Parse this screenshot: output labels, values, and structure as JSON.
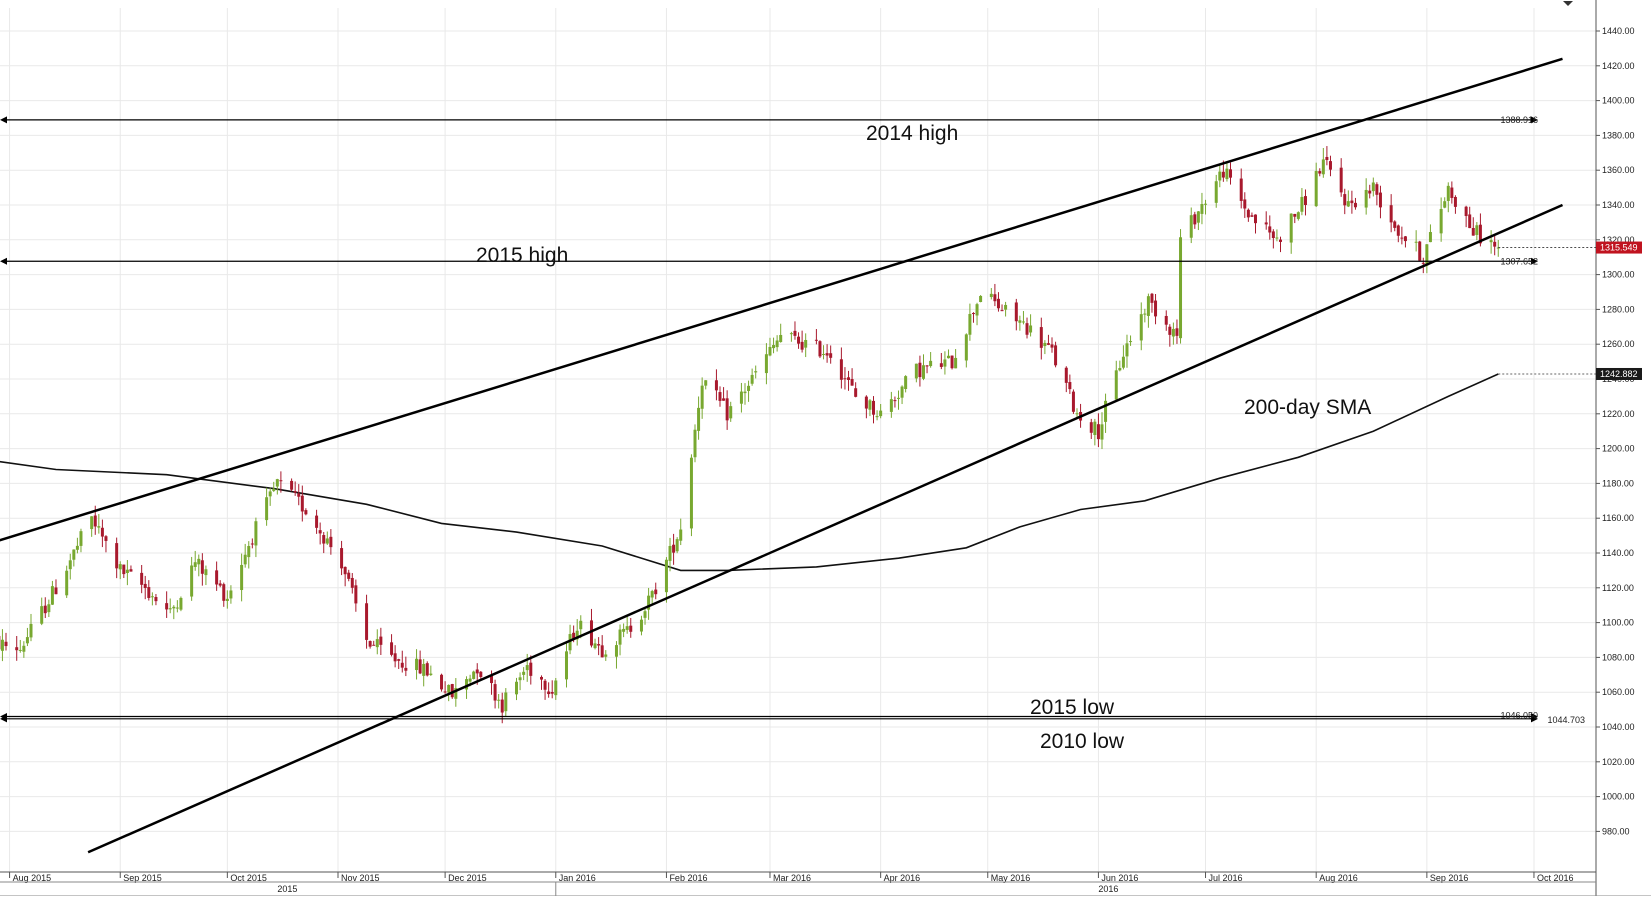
{
  "chart_data": {
    "type": "candlestick",
    "x_axis": {
      "months": [
        "Aug 2015",
        "Sep 2015",
        "Oct 2015",
        "Nov 2015",
        "Dec 2015",
        "Jan 2016",
        "Feb 2016",
        "Mar 2016",
        "Apr 2016",
        "May 2016",
        "Jun 2016",
        "Jul 2016",
        "Aug 2016",
        "Sep 2016",
        "Oct 2016"
      ],
      "years": [
        "2015",
        "2016"
      ]
    },
    "y_axis": {
      "range": [
        970,
        1455
      ],
      "ticks": [
        980,
        1000,
        1020,
        1040,
        1060,
        1080,
        1100,
        1120,
        1140,
        1160,
        1180,
        1200,
        1220,
        1240,
        1260,
        1280,
        1300,
        1320,
        1340,
        1360,
        1380,
        1400,
        1420,
        1440
      ],
      "tick_labels": [
        "980.00",
        "1000.00",
        "1020.00",
        "1040.00",
        "1060.00",
        "1080.00",
        "1100.00",
        "1120.00",
        "1140.00",
        "1160.00",
        "1180.00",
        "1200.00",
        "1220.00",
        "1240.00",
        "1260.00",
        "1280.00",
        "1300.00",
        "1320.00",
        "1340.00",
        "1360.00",
        "1380.00",
        "1400.00",
        "1420.00",
        "1440.00"
      ]
    },
    "price_path": [
      [
        "2015-07-24",
        1090
      ],
      [
        "2015-08-04",
        1085
      ],
      [
        "2015-08-14",
        1120
      ],
      [
        "2015-08-24",
        1160
      ],
      [
        "2015-09-01",
        1130
      ],
      [
        "2015-09-08",
        1120
      ],
      [
        "2015-09-15",
        1105
      ],
      [
        "2015-09-22",
        1135
      ],
      [
        "2015-10-01",
        1115
      ],
      [
        "2015-10-08",
        1150
      ],
      [
        "2015-10-15",
        1180
      ],
      [
        "2015-10-23",
        1165
      ],
      [
        "2015-11-02",
        1135
      ],
      [
        "2015-11-09",
        1090
      ],
      [
        "2015-11-16",
        1080
      ],
      [
        "2015-11-26",
        1072
      ],
      [
        "2015-12-03",
        1058
      ],
      [
        "2015-12-10",
        1075
      ],
      [
        "2015-12-17",
        1053
      ],
      [
        "2015-12-24",
        1075
      ],
      [
        "2015-12-31",
        1062
      ],
      [
        "2016-01-07",
        1100
      ],
      [
        "2016-01-14",
        1085
      ],
      [
        "2016-01-21",
        1095
      ],
      [
        "2016-01-28",
        1115
      ],
      [
        "2016-02-05",
        1155
      ],
      [
        "2016-02-11",
        1240
      ],
      [
        "2016-02-18",
        1220
      ],
      [
        "2016-02-25",
        1240
      ],
      [
        "2016-03-04",
        1265
      ],
      [
        "2016-03-11",
        1260
      ],
      [
        "2016-03-18",
        1255
      ],
      [
        "2016-03-25",
        1230
      ],
      [
        "2016-04-01",
        1220
      ],
      [
        "2016-04-11",
        1245
      ],
      [
        "2016-04-21",
        1250
      ],
      [
        "2016-04-29",
        1290
      ],
      [
        "2016-05-05",
        1280
      ],
      [
        "2016-05-12",
        1270
      ],
      [
        "2016-05-19",
        1255
      ],
      [
        "2016-05-26",
        1220
      ],
      [
        "2016-06-01",
        1210
      ],
      [
        "2016-06-08",
        1255
      ],
      [
        "2016-06-15",
        1285
      ],
      [
        "2016-06-23",
        1265
      ],
      [
        "2016-06-24",
        1320
      ],
      [
        "2016-07-06",
        1360
      ],
      [
        "2016-07-13",
        1335
      ],
      [
        "2016-07-21",
        1320
      ],
      [
        "2016-07-28",
        1340
      ],
      [
        "2016-08-03",
        1365
      ],
      [
        "2016-08-10",
        1340
      ],
      [
        "2016-08-17",
        1350
      ],
      [
        "2016-08-24",
        1325
      ],
      [
        "2016-08-31",
        1310
      ],
      [
        "2016-09-07",
        1350
      ],
      [
        "2016-09-14",
        1325
      ],
      [
        "2016-09-21",
        1315.549
      ]
    ],
    "trendlines": [
      {
        "from": [
          "2015-07-24",
          1144
        ],
        "to": [
          "2016-10-09",
          1424
        ]
      },
      {
        "from": [
          "2015-08-23",
          968
        ],
        "to": [
          "2016-10-09",
          1340
        ]
      }
    ],
    "horizontal_levels": [
      {
        "label": "2014 high",
        "value": 1388.916,
        "value_label": "1388.916"
      },
      {
        "label": "2015 high",
        "value": 1307.652,
        "value_label": "1307.652"
      },
      {
        "label": "2015 low",
        "value": 1046.05,
        "value_label": "1046.050"
      },
      {
        "label": "2010 low",
        "value": 1044.703,
        "value_label": "1044.703"
      }
    ],
    "sma": {
      "label": "200-day SMA",
      "points": [
        [
          "2015-07-24",
          1194
        ],
        [
          "2015-08-14",
          1188
        ],
        [
          "2015-09-14",
          1185
        ],
        [
          "2015-10-14",
          1177
        ],
        [
          "2015-11-09",
          1168
        ],
        [
          "2015-11-30",
          1157
        ],
        [
          "2015-12-21",
          1152
        ],
        [
          "2016-01-14",
          1144
        ],
        [
          "2016-02-05",
          1130
        ],
        [
          "2016-02-18",
          1130
        ],
        [
          "2016-03-14",
          1132
        ],
        [
          "2016-04-06",
          1137
        ],
        [
          "2016-04-25",
          1143
        ],
        [
          "2016-05-10",
          1155
        ],
        [
          "2016-05-27",
          1165
        ],
        [
          "2016-06-14",
          1170
        ],
        [
          "2016-07-05",
          1183
        ],
        [
          "2016-07-27",
          1195
        ],
        [
          "2016-08-17",
          1210
        ],
        [
          "2016-09-07",
          1230
        ],
        [
          "2016-09-21",
          1242.882
        ]
      ],
      "last_value_label": "1242.882"
    },
    "current_price_label": "1315.549",
    "colors": {
      "up": "#78a830",
      "down": "#a8192d",
      "price_tag": "#c0131f",
      "sma_tag": "#1a1a1a",
      "line": "#000000",
      "grid": "#e9e9e9"
    }
  }
}
